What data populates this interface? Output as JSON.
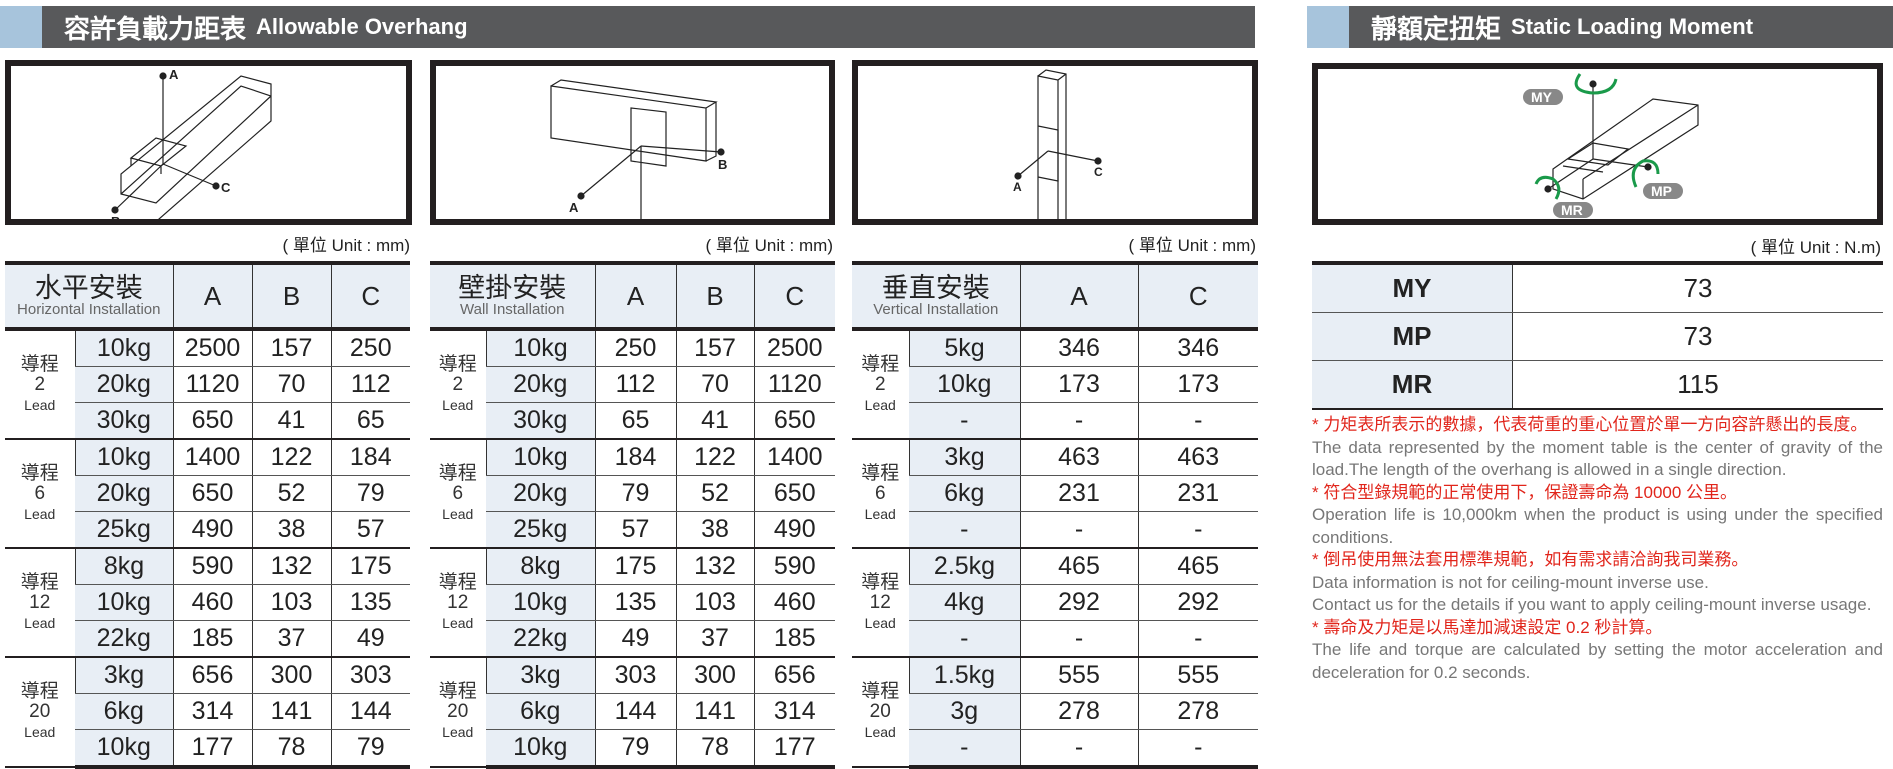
{
  "overhang": {
    "title_zh": "容許負載力距表",
    "title_en": "Allowable Overhang",
    "unit": "( 單位 Unit : mm)",
    "diagram_labels": {
      "a": "A",
      "b": "B",
      "c": "C"
    },
    "tables": [
      {
        "title_zh": "水平安裝",
        "title_en": "Horizontal Installation",
        "columns": [
          "A",
          "B",
          "C"
        ],
        "groups": [
          {
            "zh": "導程",
            "num": "2",
            "lead": "Lead",
            "rows": [
              [
                "10kg",
                "2500",
                "157",
                "250"
              ],
              [
                "20kg",
                "1120",
                "70",
                "112"
              ],
              [
                "30kg",
                "650",
                "41",
                "65"
              ]
            ]
          },
          {
            "zh": "導程",
            "num": "6",
            "lead": "Lead",
            "rows": [
              [
                "10kg",
                "1400",
                "122",
                "184"
              ],
              [
                "20kg",
                "650",
                "52",
                "79"
              ],
              [
                "25kg",
                "490",
                "38",
                "57"
              ]
            ]
          },
          {
            "zh": "導程",
            "num": "12",
            "lead": "Lead",
            "rows": [
              [
                "8kg",
                "590",
                "132",
                "175"
              ],
              [
                "10kg",
                "460",
                "103",
                "135"
              ],
              [
                "22kg",
                "185",
                "37",
                "49"
              ]
            ]
          },
          {
            "zh": "導程",
            "num": "20",
            "lead": "Lead",
            "rows": [
              [
                "3kg",
                "656",
                "300",
                "303"
              ],
              [
                "6kg",
                "314",
                "141",
                "144"
              ],
              [
                "10kg",
                "177",
                "78",
                "79"
              ]
            ]
          }
        ]
      },
      {
        "title_zh": "壁掛安裝",
        "title_en": "Wall Installation",
        "columns": [
          "A",
          "B",
          "C"
        ],
        "groups": [
          {
            "zh": "導程",
            "num": "2",
            "lead": "Lead",
            "rows": [
              [
                "10kg",
                "250",
                "157",
                "2500"
              ],
              [
                "20kg",
                "112",
                "70",
                "1120"
              ],
              [
                "30kg",
                "65",
                "41",
                "650"
              ]
            ]
          },
          {
            "zh": "導程",
            "num": "6",
            "lead": "Lead",
            "rows": [
              [
                "10kg",
                "184",
                "122",
                "1400"
              ],
              [
                "20kg",
                "79",
                "52",
                "650"
              ],
              [
                "25kg",
                "57",
                "38",
                "490"
              ]
            ]
          },
          {
            "zh": "導程",
            "num": "12",
            "lead": "Lead",
            "rows": [
              [
                "8kg",
                "175",
                "132",
                "590"
              ],
              [
                "10kg",
                "135",
                "103",
                "460"
              ],
              [
                "22kg",
                "49",
                "37",
                "185"
              ]
            ]
          },
          {
            "zh": "導程",
            "num": "20",
            "lead": "Lead",
            "rows": [
              [
                "3kg",
                "303",
                "300",
                "656"
              ],
              [
                "6kg",
                "144",
                "141",
                "314"
              ],
              [
                "10kg",
                "79",
                "78",
                "177"
              ]
            ]
          }
        ]
      },
      {
        "title_zh": "垂直安裝",
        "title_en": "Vertical Installation",
        "columns": [
          "A",
          "C"
        ],
        "groups": [
          {
            "zh": "導程",
            "num": "2",
            "lead": "Lead",
            "rows": [
              [
                "5kg",
                "346",
                "346"
              ],
              [
                "10kg",
                "173",
                "173"
              ],
              [
                "-",
                "-",
                "-"
              ]
            ]
          },
          {
            "zh": "導程",
            "num": "6",
            "lead": "Lead",
            "rows": [
              [
                "3kg",
                "463",
                "463"
              ],
              [
                "6kg",
                "231",
                "231"
              ],
              [
                "-",
                "-",
                "-"
              ]
            ]
          },
          {
            "zh": "導程",
            "num": "12",
            "lead": "Lead",
            "rows": [
              [
                "2.5kg",
                "465",
                "465"
              ],
              [
                "4kg",
                "292",
                "292"
              ],
              [
                "-",
                "-",
                "-"
              ]
            ]
          },
          {
            "zh": "導程",
            "num": "20",
            "lead": "Lead",
            "rows": [
              [
                "1.5kg",
                "555",
                "555"
              ],
              [
                "3g",
                "278",
                "278"
              ],
              [
                "-",
                "-",
                "-"
              ]
            ]
          }
        ]
      }
    ]
  },
  "moment": {
    "title_zh": "靜額定扭矩",
    "title_en": "Static Loading Moment",
    "unit": "( 單位 Unit : N.m)",
    "diagram_labels": {
      "my": "MY",
      "mp": "MP",
      "mr": "MR"
    },
    "arrow_color": "#1a9a4a",
    "rows": [
      {
        "k": "MY",
        "v": "73"
      },
      {
        "k": "MP",
        "v": "73"
      },
      {
        "k": "MR",
        "v": "115"
      }
    ],
    "notes": [
      {
        "zh": "* 力矩表所表示的數據，代表荷重的重心位置於單一方向容許懸出的長度。",
        "en": "The data represented by the moment table is the center of gravity of the load.The length of the overhang is allowed in a single direction."
      },
      {
        "zh": "* 符合型錄規範的正常使用下，保證壽命為 10000 公里。",
        "en": "Operation life is 10,000km when the product is using under the specified conditions."
      },
      {
        "zh": "* 倒吊使用無法套用標準規範，如有需求請洽詢我司業務。",
        "en": "Data information is not for ceiling-mount inverse use.",
        "en2": "Contact us for the details if you want to apply ceiling-mount inverse usage."
      },
      {
        "zh": "* 壽命及力矩是以馬達加減速設定 0.2 秒計算。",
        "en": "The life and torque are calculated by setting the motor acceleration and deceleration for 0.2 seconds."
      }
    ]
  }
}
